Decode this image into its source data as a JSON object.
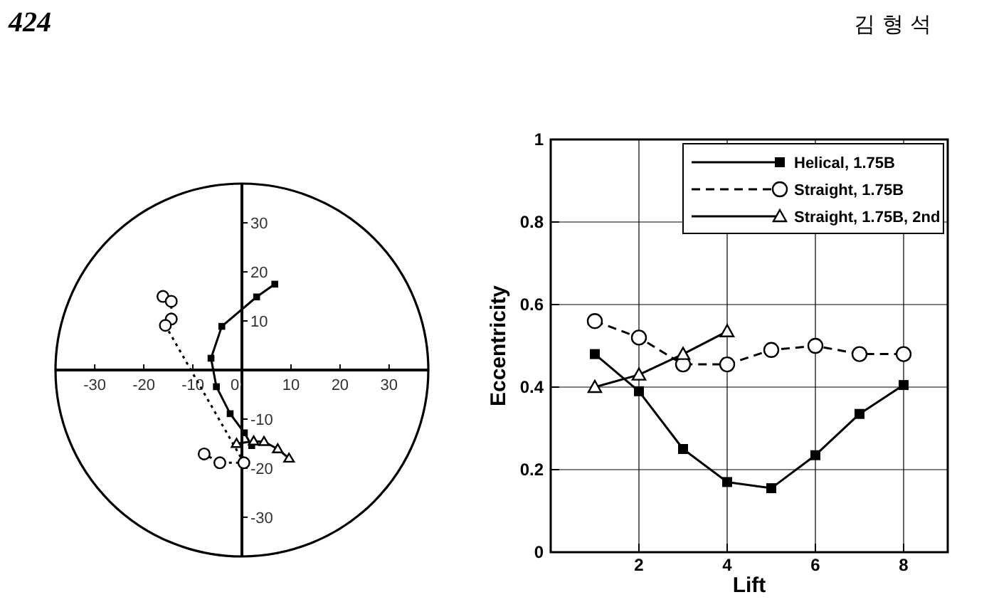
{
  "chart_data": [
    {
      "type": "line",
      "annotations": [
        "424",
        "김 형 석"
      ],
      "xlim": [
        -38,
        38
      ],
      "ylim": [
        -38,
        38
      ],
      "xticks": [
        -30,
        -20,
        -10,
        0,
        10,
        20,
        30
      ],
      "yticks": [
        -30,
        -20,
        -10,
        10,
        20,
        30
      ],
      "grid": false,
      "series": [
        {
          "color": "#000000",
          "marker": "square",
          "line_style": "solid",
          "x": [
            2.0,
            0.5,
            -2.4,
            -5.2,
            -6.3,
            -4.1,
            3.0,
            6.7
          ],
          "values": [
            -15.4,
            -12.8,
            -8.9,
            -3.4,
            2.4,
            8.9,
            14.9,
            17.5
          ]
        },
        {
          "color": "#000000",
          "marker": "circle",
          "line_style": "dotted",
          "x": [
            -16.1,
            -14.4,
            -14.4,
            -15.6,
            0.4,
            -4.5,
            -7.7
          ],
          "values": [
            15.0,
            14.0,
            10.4,
            9.1,
            -18.9,
            -18.9,
            -17.1
          ]
        },
        {
          "color": "#000000",
          "marker": "triangle",
          "line_style": "solid",
          "x": [
            -1.1,
            2.4,
            4.5,
            7.3,
            9.6
          ],
          "values": [
            -15.0,
            -14.5,
            -14.6,
            -16.1,
            -18.0
          ]
        }
      ]
    },
    {
      "type": "line",
      "xlabel": "Lift",
      "ylabel": "Eccentricity",
      "xlim": [
        0,
        9
      ],
      "ylim": [
        0,
        1
      ],
      "xticks": [
        2,
        4,
        6,
        8
      ],
      "yticks": [
        0,
        0.2,
        0.4,
        0.6,
        0.8,
        1
      ],
      "grid": true,
      "legend": "top right",
      "series": [
        {
          "name": "Helical, 1.75B",
          "color": "#000000",
          "marker": "square",
          "line_style": "solid",
          "x": [
            1,
            2,
            3,
            4,
            5,
            6,
            7,
            8
          ],
          "values": [
            0.48,
            0.39,
            0.25,
            0.17,
            0.155,
            0.235,
            0.335,
            0.405
          ]
        },
        {
          "name": "Straight, 1.75B",
          "color": "#000000",
          "marker": "circle",
          "line_style": "dashed",
          "x": [
            1,
            2,
            3,
            4,
            5,
            6,
            7,
            8
          ],
          "values": [
            0.56,
            0.52,
            0.455,
            0.455,
            0.49,
            0.5,
            0.48,
            0.48
          ]
        },
        {
          "name": "Straight, 1.75B, 2nd",
          "color": "#000000",
          "marker": "triangle",
          "line_style": "solid",
          "x": [
            1,
            2,
            3,
            4
          ],
          "values": [
            0.4,
            0.43,
            0.48,
            0.535
          ]
        }
      ]
    }
  ]
}
